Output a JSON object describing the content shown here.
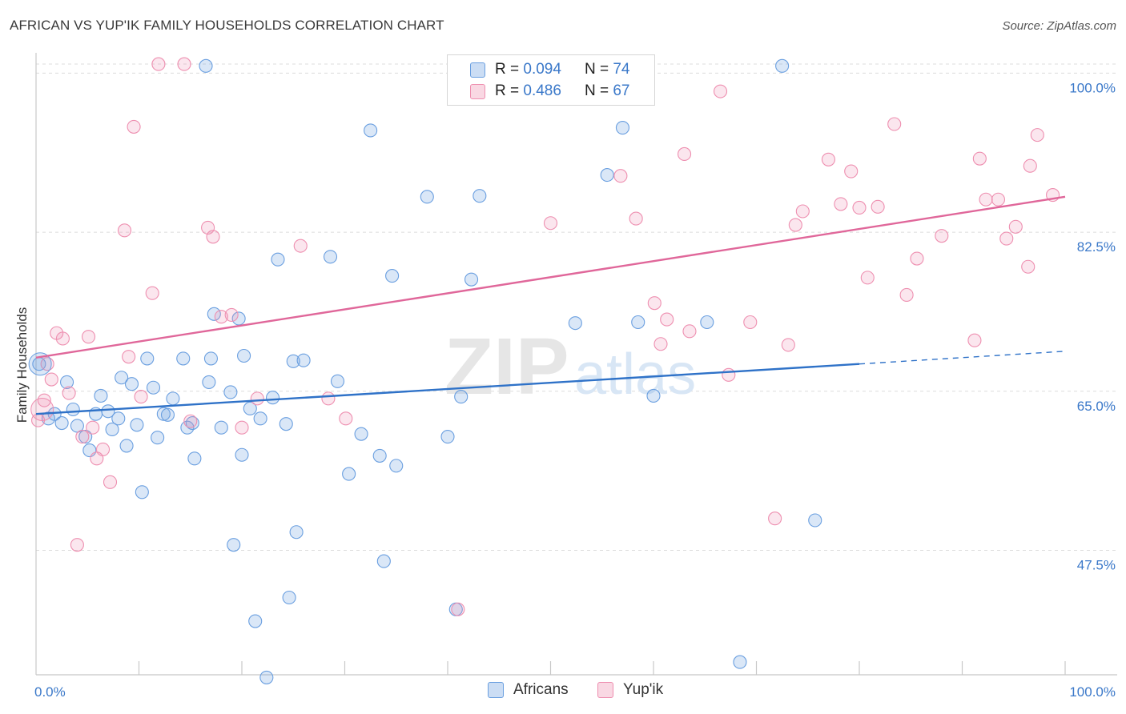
{
  "title": "AFRICAN VS YUP'IK FAMILY HOUSEHOLDS CORRELATION CHART",
  "source": "Source: ZipAtlas.com",
  "watermark": {
    "zip": "ZIP",
    "atlas": "atlas"
  },
  "legend": {
    "rows": [
      {
        "r_label": "R =",
        "r_value": "0.094",
        "n_label": "N =",
        "n_value": "74",
        "color": "#6a9fe0"
      },
      {
        "r_label": "R =",
        "r_value": "0.486",
        "n_label": "N =",
        "n_value": "67",
        "color": "#ee8fb0"
      }
    ]
  },
  "bottom_legend": [
    {
      "label": "Africans",
      "color": "#6a9fe0"
    },
    {
      "label": "Yup'ik",
      "color": "#ee8fb0"
    }
  ],
  "chart_data": {
    "type": "scatter",
    "title": "AFRICAN VS YUP'IK FAMILY HOUSEHOLDS CORRELATION CHART",
    "xlabel": "",
    "ylabel": "Family Households",
    "xlim": [
      0,
      100
    ],
    "ylim": [
      33.8,
      101.8
    ],
    "x_tick_labels": [
      "0.0%",
      "100.0%"
    ],
    "y_ticks": [
      {
        "value": 47.5,
        "label": "47.5%"
      },
      {
        "value": 65.0,
        "label": "65.0%"
      },
      {
        "value": 82.5,
        "label": "82.5%"
      },
      {
        "value": 100.0,
        "label": "100.0%"
      }
    ],
    "series": [
      {
        "name": "Africans",
        "color": "#6a9fe0",
        "fill": "rgba(106,159,224,0.25)",
        "trend": {
          "x0": 0,
          "y0": 62.5,
          "x1": 80,
          "y1": 68.0,
          "dash_to_x": 100,
          "dash_to_y": 69.4
        },
        "points": [
          [
            0.3,
            68.0
          ],
          [
            1.2,
            62.0
          ],
          [
            1.8,
            62.5
          ],
          [
            2.5,
            61.5
          ],
          [
            3.0,
            66.0
          ],
          [
            3.6,
            63.0
          ],
          [
            4.0,
            61.2
          ],
          [
            4.8,
            60.0
          ],
          [
            5.2,
            58.5
          ],
          [
            5.8,
            62.5
          ],
          [
            6.3,
            64.5
          ],
          [
            7.0,
            62.8
          ],
          [
            7.4,
            60.8
          ],
          [
            8.0,
            62.0
          ],
          [
            8.3,
            66.5
          ],
          [
            8.8,
            59.0
          ],
          [
            9.3,
            65.8
          ],
          [
            9.8,
            61.3
          ],
          [
            10.3,
            53.9
          ],
          [
            10.8,
            68.6
          ],
          [
            11.4,
            65.4
          ],
          [
            11.8,
            59.9
          ],
          [
            12.4,
            62.5
          ],
          [
            12.8,
            62.4
          ],
          [
            13.3,
            64.2
          ],
          [
            14.3,
            68.6
          ],
          [
            14.7,
            61.0
          ],
          [
            15.2,
            61.5
          ],
          [
            15.4,
            57.6
          ],
          [
            16.5,
            100.8
          ],
          [
            16.8,
            66.0
          ],
          [
            17.0,
            68.6
          ],
          [
            17.3,
            73.5
          ],
          [
            18.0,
            61.0
          ],
          [
            18.9,
            64.9
          ],
          [
            19.2,
            48.1
          ],
          [
            19.7,
            73.0
          ],
          [
            20.2,
            68.9
          ],
          [
            20.8,
            63.1
          ],
          [
            21.3,
            39.7
          ],
          [
            21.8,
            62.0
          ],
          [
            22.4,
            33.5
          ],
          [
            23.0,
            64.3
          ],
          [
            23.5,
            79.5
          ],
          [
            24.3,
            61.4
          ],
          [
            24.6,
            42.3
          ],
          [
            25.0,
            68.3
          ],
          [
            25.3,
            49.5
          ],
          [
            26.0,
            68.4
          ],
          [
            28.6,
            79.8
          ],
          [
            29.3,
            66.1
          ],
          [
            30.4,
            55.9
          ],
          [
            31.6,
            60.3
          ],
          [
            32.5,
            93.7
          ],
          [
            33.4,
            57.9
          ],
          [
            33.8,
            46.3
          ],
          [
            34.6,
            77.7
          ],
          [
            35.0,
            56.8
          ],
          [
            38.0,
            86.4
          ],
          [
            40.8,
            41.0
          ],
          [
            41.3,
            64.4
          ],
          [
            42.3,
            77.3
          ],
          [
            43.1,
            86.5
          ],
          [
            52.4,
            72.5
          ],
          [
            55.5,
            88.8
          ],
          [
            58.5,
            72.6
          ],
          [
            60.0,
            64.5
          ],
          [
            65.2,
            72.6
          ],
          [
            68.4,
            35.2
          ],
          [
            72.5,
            100.8
          ],
          [
            75.7,
            50.8
          ],
          [
            57.0,
            94.0
          ],
          [
            40.0,
            60.0
          ],
          [
            20.0,
            58.0
          ]
        ]
      },
      {
        "name": "Yup'ik",
        "color": "#ee8fb0",
        "fill": "rgba(238,143,176,0.22)",
        "trend": {
          "x0": 0,
          "y0": 68.7,
          "x1": 100,
          "y1": 86.4
        },
        "points": [
          [
            0.2,
            61.8
          ],
          [
            0.8,
            64.0
          ],
          [
            1.1,
            68.0
          ],
          [
            1.5,
            66.3
          ],
          [
            2.0,
            71.4
          ],
          [
            2.6,
            70.8
          ],
          [
            3.2,
            64.8
          ],
          [
            4.0,
            48.1
          ],
          [
            4.5,
            60.0
          ],
          [
            5.1,
            71.0
          ],
          [
            5.5,
            61.0
          ],
          [
            5.9,
            57.6
          ],
          [
            6.5,
            58.6
          ],
          [
            7.2,
            55.0
          ],
          [
            8.6,
            82.7
          ],
          [
            9.0,
            68.8
          ],
          [
            9.5,
            94.1
          ],
          [
            10.2,
            64.4
          ],
          [
            11.3,
            75.8
          ],
          [
            11.9,
            101.0
          ],
          [
            14.4,
            101.0
          ],
          [
            15.0,
            61.7
          ],
          [
            16.7,
            83.0
          ],
          [
            17.2,
            82.0
          ],
          [
            18.0,
            73.2
          ],
          [
            19.0,
            73.4
          ],
          [
            20.0,
            61.0
          ],
          [
            21.5,
            64.2
          ],
          [
            25.7,
            81.0
          ],
          [
            28.4,
            64.2
          ],
          [
            30.1,
            62.0
          ],
          [
            41.0,
            41.0
          ],
          [
            50.0,
            83.5
          ],
          [
            56.8,
            88.7
          ],
          [
            58.3,
            84.0
          ],
          [
            60.1,
            74.7
          ],
          [
            60.7,
            70.2
          ],
          [
            61.3,
            72.9
          ],
          [
            63.0,
            91.1
          ],
          [
            63.5,
            71.6
          ],
          [
            66.5,
            98.0
          ],
          [
            67.3,
            66.8
          ],
          [
            69.4,
            72.6
          ],
          [
            71.8,
            51.0
          ],
          [
            73.1,
            70.1
          ],
          [
            73.8,
            83.3
          ],
          [
            74.5,
            84.8
          ],
          [
            77.0,
            90.5
          ],
          [
            78.2,
            85.6
          ],
          [
            79.2,
            89.2
          ],
          [
            80.0,
            85.2
          ],
          [
            80.8,
            77.5
          ],
          [
            81.8,
            85.3
          ],
          [
            83.4,
            94.4
          ],
          [
            84.6,
            75.6
          ],
          [
            85.6,
            79.6
          ],
          [
            88.0,
            82.1
          ],
          [
            91.2,
            70.6
          ],
          [
            91.7,
            90.6
          ],
          [
            92.3,
            86.1
          ],
          [
            93.5,
            86.1
          ],
          [
            94.3,
            81.8
          ],
          [
            95.2,
            83.1
          ],
          [
            96.4,
            78.7
          ],
          [
            96.6,
            89.8
          ],
          [
            97.3,
            93.2
          ],
          [
            98.8,
            86.6
          ]
        ]
      }
    ]
  }
}
